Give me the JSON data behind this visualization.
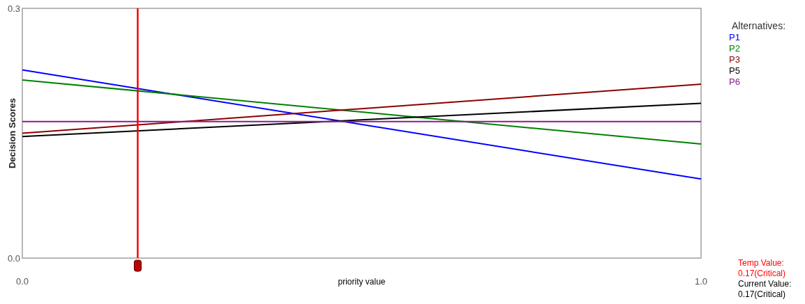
{
  "chart_data": {
    "type": "line",
    "xlabel": "priority value",
    "ylabel": "Decision Scores",
    "legend_title": "Alternatives:",
    "x": [
      0,
      1
    ],
    "xlim": [
      0,
      1
    ],
    "xticks": [
      {
        "value": 0,
        "label": "0.0"
      },
      {
        "value": 1,
        "label": "1.0"
      }
    ],
    "ylim": [
      0,
      0.3
    ],
    "yticks": [
      {
        "value": 0,
        "label": "0.0"
      },
      {
        "value": 0.3,
        "label": "0.3"
      }
    ],
    "series": [
      {
        "name": "P1",
        "color": "#0000ff",
        "values": [
          0.226,
          0.095
        ]
      },
      {
        "name": "P2",
        "color": "#008000",
        "values": [
          0.214,
          0.137
        ]
      },
      {
        "name": "P3",
        "color": "#8b0000",
        "values": [
          0.15,
          0.209
        ]
      },
      {
        "name": "P5",
        "color": "#000000",
        "values": [
          0.146,
          0.186
        ]
      },
      {
        "name": "P6",
        "color": "#8b1a8b",
        "values": [
          0.164,
          0.164
        ]
      }
    ],
    "ref_lines": [
      {
        "axis": "x",
        "value": 0.17,
        "label": "Temp Value:\n0.17(Critical)",
        "color": "#ff0000"
      }
    ],
    "annotations": [
      "Current Value:\n0.17(Critical)"
    ],
    "legend": "right",
    "grid": false,
    "marker": "none",
    "line_style": "solid"
  }
}
